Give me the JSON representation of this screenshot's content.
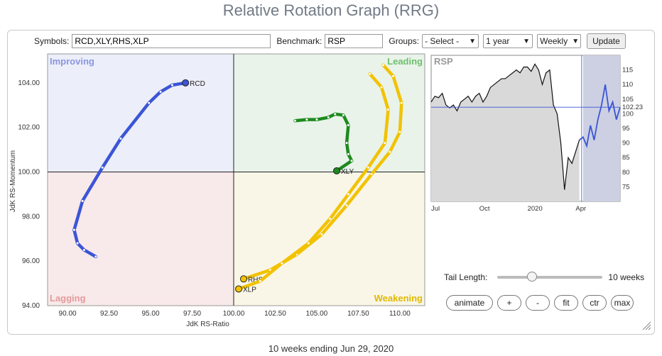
{
  "page_title": "Relative Rotation Graph (RRG)",
  "controls": {
    "symbols_label": "Symbols:",
    "symbols_value": "RCD,XLY,RHS,XLP",
    "benchmark_label": "Benchmark:",
    "benchmark_value": "RSP",
    "groups_label": "Groups:",
    "groups_value": "- Select -",
    "period_value": "1 year",
    "frequency_value": "Weekly",
    "update_label": "Update"
  },
  "tail": {
    "label": "Tail Length:",
    "value_label": "10 weeks",
    "slider_fraction": 0.33
  },
  "buttons": {
    "animate": "animate",
    "plus": "+",
    "minus": "-",
    "fit": "fit",
    "ctr": "ctr",
    "max": "max"
  },
  "footer": "10 weeks ending Jun 29, 2020",
  "chart_data": [
    {
      "type": "scatter",
      "title": "",
      "xlabel": "JdK RS-Ratio",
      "ylabel": "JdK RS-Momentum",
      "xlim": [
        88.8,
        111.5
      ],
      "ylim": [
        94.0,
        105.3
      ],
      "xticks": [
        "90.00",
        "92.50",
        "95.00",
        "97.50",
        "100.00",
        "102.50",
        "105.00",
        "107.50",
        "110.00"
      ],
      "yticks": [
        "94.00",
        "96.00",
        "98.00",
        "100.00",
        "102.00",
        "104.00"
      ],
      "center": [
        100,
        100
      ],
      "quadrants": {
        "improving": "Improving",
        "leading": "Leading",
        "lagging": "Lagging",
        "weakening": "Weakening"
      },
      "colors": {
        "improving": "#eceef9",
        "leading": "#e9f3ea",
        "lagging": "#f8e9ea",
        "weakening": "#f9f6e7"
      },
      "series": [
        {
          "name": "RCD",
          "color": "#3b55d6",
          "points": [
            [
              91.7,
              96.2
            ],
            [
              91.0,
              96.5
            ],
            [
              90.6,
              96.8
            ],
            [
              90.4,
              97.4
            ],
            [
              90.9,
              98.7
            ],
            [
              92.1,
              100.2
            ],
            [
              93.2,
              101.5
            ],
            [
              94.9,
              103.1
            ],
            [
              95.6,
              103.6
            ],
            [
              96.3,
              103.9
            ],
            [
              97.1,
              104.0
            ]
          ]
        },
        {
          "name": "XLY",
          "color": "#1e8a1e",
          "points": [
            [
              103.7,
              102.3
            ],
            [
              104.4,
              102.35
            ],
            [
              105.0,
              102.35
            ],
            [
              105.7,
              102.45
            ],
            [
              106.1,
              102.6
            ],
            [
              106.6,
              102.55
            ],
            [
              106.9,
              102.1
            ],
            [
              106.8,
              101.3
            ],
            [
              106.9,
              100.8
            ],
            [
              107.1,
              100.5
            ],
            [
              106.2,
              100.05
            ]
          ]
        },
        {
          "name": "RHS",
          "color": "#f2c200",
          "points": [
            [
              109.0,
              104.8
            ],
            [
              109.6,
              104.3
            ],
            [
              110.1,
              103.1
            ],
            [
              110.0,
              101.8
            ],
            [
              109.4,
              100.9
            ],
            [
              108.3,
              99.9
            ],
            [
              106.8,
              98.5
            ],
            [
              105.3,
              97.2
            ],
            [
              103.8,
              96.3
            ],
            [
              102.2,
              95.6
            ],
            [
              100.6,
              95.2
            ]
          ]
        },
        {
          "name": "XLP",
          "color": "#f2c200",
          "points": [
            [
              108.2,
              104.4
            ],
            [
              108.9,
              103.8
            ],
            [
              109.3,
              102.8
            ],
            [
              109.1,
              101.3
            ],
            [
              108.1,
              100.2
            ],
            [
              106.9,
              99.0
            ],
            [
              105.8,
              97.9
            ],
            [
              104.5,
              96.8
            ],
            [
              102.9,
              95.9
            ],
            [
              101.6,
              95.1
            ],
            [
              100.3,
              94.75
            ]
          ]
        }
      ]
    },
    {
      "type": "line",
      "title": "RSP",
      "xlabel": "",
      "ylabel": "",
      "ylim": [
        70,
        120
      ],
      "yticks": [
        "115",
        "110",
        "105",
        "100",
        "95",
        "90",
        "85",
        "80",
        "75"
      ],
      "x_ticks": [
        {
          "label": "Jul",
          "x": 0
        },
        {
          "label": "Oct",
          "x": 13
        },
        {
          "label": "2020",
          "x": 26
        },
        {
          "label": "Apr",
          "x": 39
        }
      ],
      "shaded_from_x": 41,
      "current_value_label": "102.23",
      "current_value": 102.23,
      "price": {
        "color": "#111111",
        "values": [
          [
            0,
            104
          ],
          [
            1,
            106
          ],
          [
            2,
            105.5
          ],
          [
            3,
            107
          ],
          [
            4,
            103
          ],
          [
            5,
            102
          ],
          [
            6,
            103
          ],
          [
            7,
            101
          ],
          [
            8,
            104
          ],
          [
            9,
            105
          ],
          [
            10,
            106
          ],
          [
            11,
            104
          ],
          [
            12,
            106
          ],
          [
            13,
            107
          ],
          [
            14,
            104
          ],
          [
            15,
            106
          ],
          [
            16,
            109
          ],
          [
            17,
            110
          ],
          [
            18,
            111
          ],
          [
            19,
            112
          ],
          [
            20,
            112
          ],
          [
            21,
            113
          ],
          [
            22,
            114
          ],
          [
            23,
            115
          ],
          [
            24,
            114
          ],
          [
            25,
            116
          ],
          [
            26,
            116
          ],
          [
            27,
            114.5
          ],
          [
            28,
            117
          ],
          [
            29,
            115
          ],
          [
            30,
            110
          ],
          [
            31,
            114
          ],
          [
            32,
            115
          ],
          [
            33,
            103
          ],
          [
            34,
            100
          ],
          [
            35,
            90
          ],
          [
            36,
            74
          ],
          [
            37,
            85
          ],
          [
            38,
            83
          ],
          [
            39,
            87
          ],
          [
            40,
            91
          ]
        ]
      },
      "relative": {
        "color": "#3b55d6",
        "values": [
          [
            40,
            91
          ],
          [
            41,
            92
          ],
          [
            42,
            89
          ],
          [
            43,
            96
          ],
          [
            44,
            91
          ],
          [
            45,
            98
          ],
          [
            46,
            103
          ],
          [
            47,
            110
          ],
          [
            48,
            101
          ],
          [
            49,
            104
          ],
          [
            50,
            98
          ],
          [
            51,
            102.23
          ]
        ]
      }
    }
  ]
}
